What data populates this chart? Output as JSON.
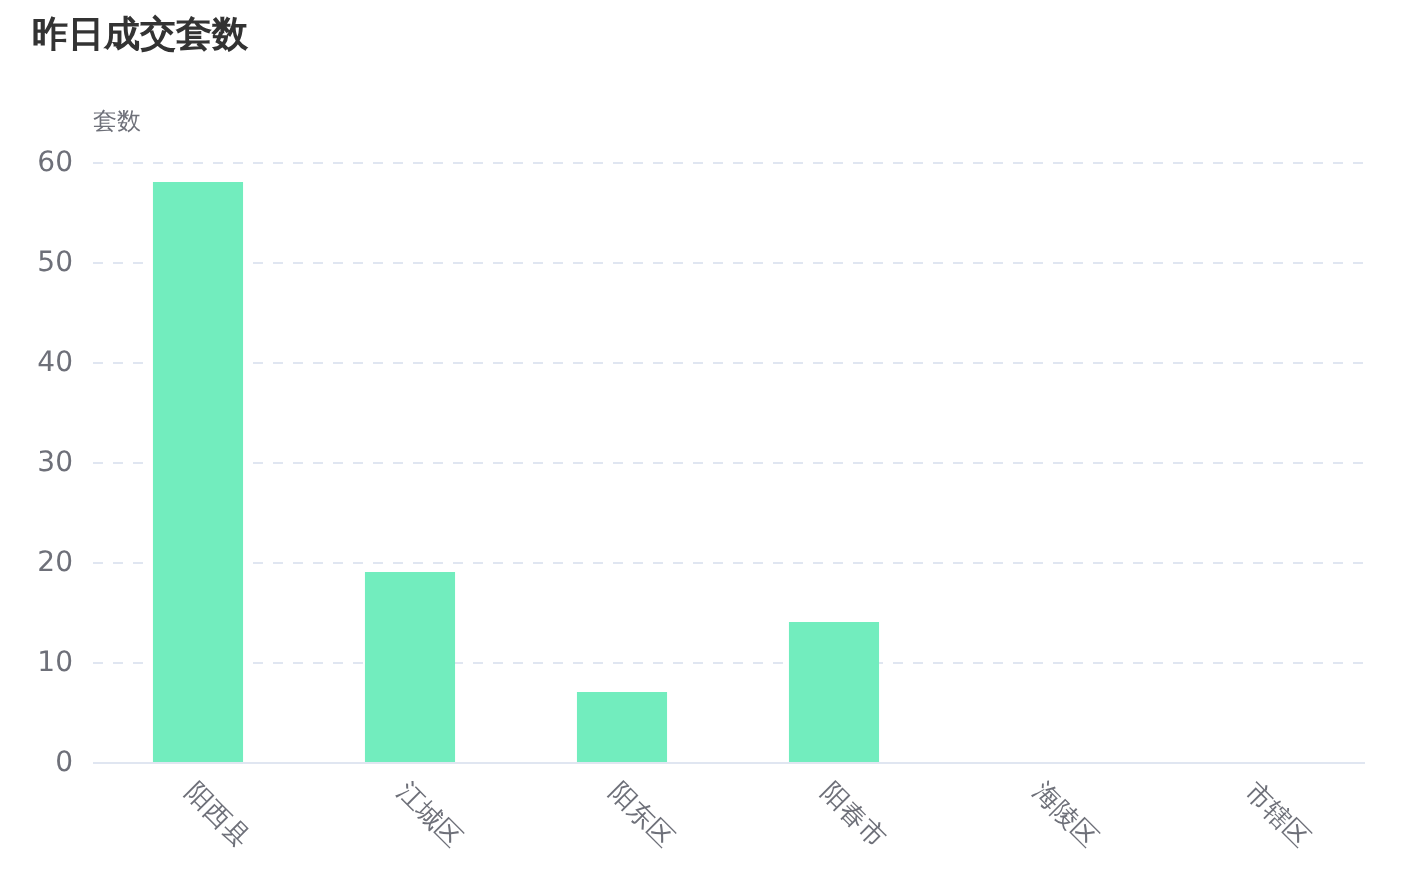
{
  "chart_data": {
    "type": "bar",
    "title": "昨日成交套数",
    "ylabel": "套数",
    "categories": [
      "阳西县",
      "江城区",
      "阳东区",
      "阳春市",
      "海陵区",
      "市辖区"
    ],
    "values": [
      58,
      19,
      7,
      14,
      0,
      0
    ],
    "color": "#72edbe",
    "ylim": [
      0,
      60
    ],
    "yticks": [
      0,
      10,
      20,
      30,
      40,
      50,
      60
    ],
    "grid": "y"
  }
}
